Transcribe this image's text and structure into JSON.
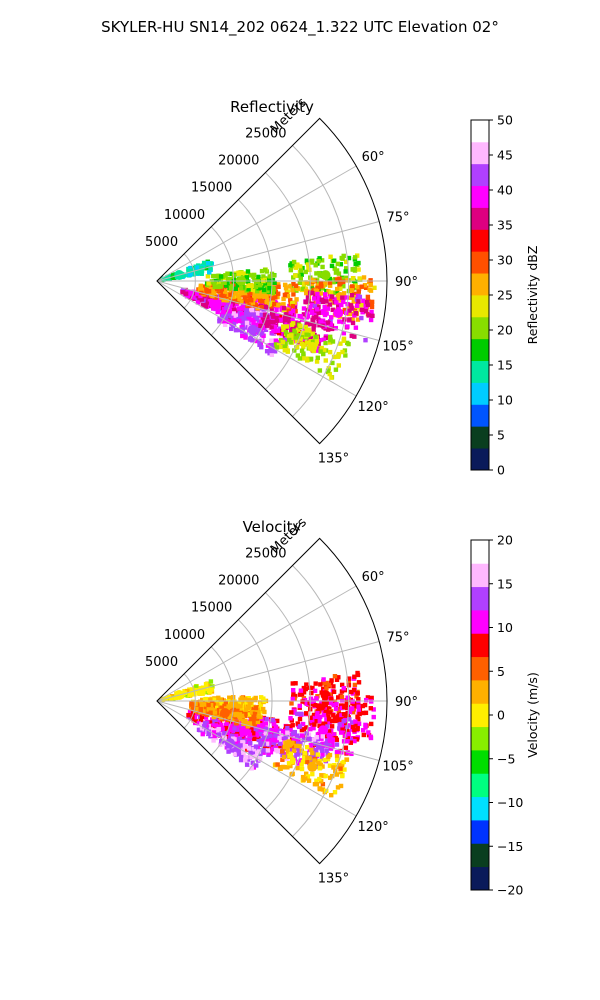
{
  "figure": {
    "suptitle": "SKYLER-HU  SN14_202  0624_1.322 UTC Elevation 02°"
  },
  "chart_data": [
    {
      "type": "heatmap",
      "title": "Reflectivity",
      "projection": "polar sector",
      "range_label": "Meters",
      "range_ticks": [
        "5000",
        "10000",
        "15000",
        "20000",
        "25000"
      ],
      "rlim": [
        0,
        30000
      ],
      "angle_ticks": [
        "60°",
        "75°",
        "90°",
        "105°",
        "120°",
        "135°"
      ],
      "theta_range_deg": [
        45,
        135
      ],
      "grid": true,
      "colorbar": {
        "label": "Reflectivity dBZ",
        "range": [
          0,
          50
        ],
        "ticks": [
          "0",
          "5",
          "10",
          "15",
          "20",
          "25",
          "30",
          "35",
          "40",
          "45",
          "50"
        ],
        "colors": [
          "#0a1a5a",
          "#0a3e1f",
          "#0055ff",
          "#00ccff",
          "#00e8a0",
          "#00cc00",
          "#88dd00",
          "#e8e800",
          "#ffb000",
          "#ff5000",
          "#ff0000",
          "#dd0080",
          "#ff00ff",
          "#b040ff",
          "#ffb8ff",
          "#ffffff"
        ]
      },
      "echo_cells": [
        {
          "az": 88,
          "r": 22000,
          "value": 20
        },
        {
          "az": 95,
          "r": 24000,
          "value": 27
        },
        {
          "az": 100,
          "r": 24000,
          "value": 38
        },
        {
          "az": 105,
          "r": 14000,
          "value": 37
        },
        {
          "az": 110,
          "r": 12000,
          "value": 42
        },
        {
          "az": 112,
          "r": 8000,
          "value": 38
        },
        {
          "az": 100,
          "r": 10000,
          "value": 28
        },
        {
          "az": 97,
          "r": 14000,
          "value": 27
        },
        {
          "az": 90,
          "r": 11000,
          "value": 20
        },
        {
          "az": 75,
          "r": 3000,
          "value": 14
        },
        {
          "az": 117,
          "r": 14000,
          "value": 42
        },
        {
          "az": 108,
          "r": 19000,
          "value": 37
        },
        {
          "az": 113,
          "r": 22000,
          "value": 22
        }
      ]
    },
    {
      "type": "heatmap",
      "title": "Velocity",
      "projection": "polar sector",
      "range_label": "Meters",
      "range_ticks": [
        "5000",
        "10000",
        "15000",
        "20000",
        "25000"
      ],
      "rlim": [
        0,
        30000
      ],
      "angle_ticks": [
        "60°",
        "75°",
        "90°",
        "105°",
        "120°",
        "135°"
      ],
      "theta_range_deg": [
        45,
        135
      ],
      "grid": true,
      "colorbar": {
        "label": "Velocity (m/s)",
        "range": [
          -20,
          20
        ],
        "ticks": [
          "−20",
          "−15",
          "−10",
          "−5",
          "0",
          "5",
          "10",
          "15",
          "20"
        ],
        "colors": [
          "#0a1a5a",
          "#0a3e1f",
          "#0033ff",
          "#00e0ff",
          "#00ff80",
          "#00dd00",
          "#88ee00",
          "#ffee00",
          "#ffb000",
          "#ff6000",
          "#ff0000",
          "#ff00ff",
          "#b040ff",
          "#ffb8ff",
          "#ffffff"
        ]
      },
      "echo_cells": [
        {
          "az": 88,
          "r": 22000,
          "value": 8
        },
        {
          "az": 95,
          "r": 24000,
          "value": 9
        },
        {
          "az": 100,
          "r": 22000,
          "value": 10
        },
        {
          "az": 105,
          "r": 14000,
          "value": 10
        },
        {
          "az": 110,
          "r": 12000,
          "value": 11
        },
        {
          "az": 114,
          "r": 9000,
          "value": 10
        },
        {
          "az": 97,
          "r": 9000,
          "value": 3
        },
        {
          "az": 93,
          "r": 10000,
          "value": 2
        },
        {
          "az": 100,
          "r": 9000,
          "value": 4
        },
        {
          "az": 120,
          "r": 11000,
          "value": 14
        },
        {
          "az": 108,
          "r": 19000,
          "value": 13
        },
        {
          "az": 113,
          "r": 22000,
          "value": 2
        },
        {
          "az": 75,
          "r": 3000,
          "value": 0
        }
      ]
    }
  ]
}
